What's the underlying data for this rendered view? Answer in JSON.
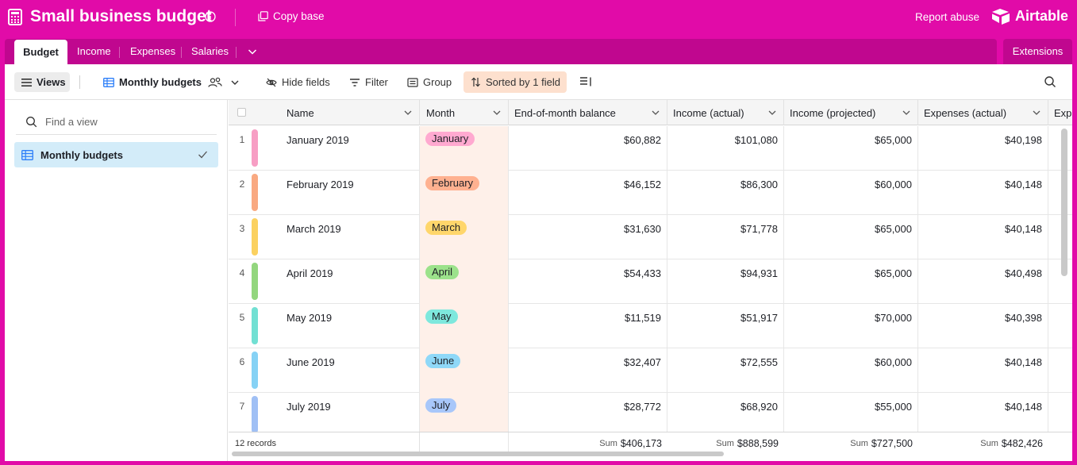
{
  "topbar": {
    "title": "Small business budget",
    "copy_base": "Copy base",
    "report_abuse": "Report abuse",
    "brand": "Airtable"
  },
  "tabs": [
    {
      "label": "Budget",
      "active": true
    },
    {
      "label": "Income",
      "active": false
    },
    {
      "label": "Expenses",
      "active": false
    },
    {
      "label": "Salaries",
      "active": false
    }
  ],
  "extensions_label": "Extensions",
  "viewbar": {
    "views_label": "Views",
    "view_name": "Monthly budgets",
    "hide_fields": "Hide fields",
    "filter": "Filter",
    "group": "Group",
    "sorted": "Sorted by 1 field"
  },
  "sidebar": {
    "find_placeholder": "Find a view",
    "views": [
      {
        "label": "Monthly budgets",
        "selected": true
      }
    ]
  },
  "columns": [
    "Name",
    "Month",
    "End-of-month balance",
    "Income (actual)",
    "Income (projected)",
    "Expenses (actual)",
    "Exp"
  ],
  "rows": [
    {
      "num": "1",
      "name": "January 2019",
      "month": "January",
      "month_color": "#ffa9d0",
      "bar_color": "#f79ec4",
      "balance": "$60,882",
      "income_actual": "$101,080",
      "income_projected": "$65,000",
      "expenses_actual": "$40,198"
    },
    {
      "num": "2",
      "name": "February 2019",
      "month": "February",
      "month_color": "#ffb190",
      "bar_color": "#f9a981",
      "balance": "$46,152",
      "income_actual": "$86,300",
      "income_projected": "$60,000",
      "expenses_actual": "$40,148"
    },
    {
      "num": "3",
      "name": "March 2019",
      "month": "March",
      "month_color": "#ffd66b",
      "bar_color": "#fbd160",
      "balance": "$31,630",
      "income_actual": "$71,778",
      "income_projected": "$65,000",
      "expenses_actual": "$40,148"
    },
    {
      "num": "4",
      "name": "April 2019",
      "month": "April",
      "month_color": "#9ce28b",
      "bar_color": "#93d67e",
      "balance": "$54,433",
      "income_actual": "$94,931",
      "income_projected": "$65,000",
      "expenses_actual": "$40,498"
    },
    {
      "num": "5",
      "name": "May 2019",
      "month": "May",
      "month_color": "#7ee8dd",
      "bar_color": "#72e0d3",
      "balance": "$11,519",
      "income_actual": "$51,917",
      "income_projected": "$70,000",
      "expenses_actual": "$40,398"
    },
    {
      "num": "6",
      "name": "June 2019",
      "month": "June",
      "month_color": "#8fd8f8",
      "bar_color": "#86d2f5",
      "balance": "$32,407",
      "income_actual": "$72,555",
      "income_projected": "$60,000",
      "expenses_actual": "$40,148"
    },
    {
      "num": "7",
      "name": "July 2019",
      "month": "July",
      "month_color": "#a8c7fa",
      "bar_color": "#a0c0f5",
      "balance": "$28,772",
      "income_actual": "$68,920",
      "income_projected": "$55,000",
      "expenses_actual": "$40,148"
    }
  ],
  "footer": {
    "records": "12 records",
    "sum_label": "Sum",
    "balance_sum": "$406,173",
    "income_actual_sum": "$888,599",
    "income_projected_sum": "$727,500",
    "expenses_actual_sum": "$482,426"
  }
}
